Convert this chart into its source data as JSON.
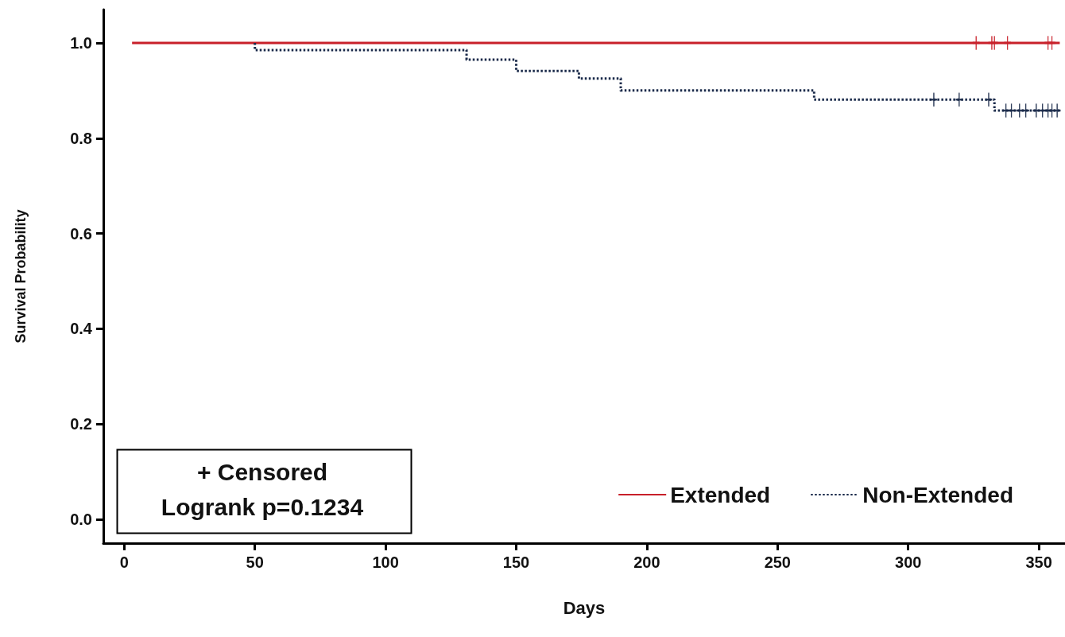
{
  "chart_data": {
    "type": "step",
    "xlabel": "Days",
    "ylabel": "Survival Probability",
    "annotations": [
      "+ Censored",
      "Logrank p=0.1234"
    ],
    "xlim": [
      -8,
      360
    ],
    "xticks": [
      0,
      50,
      100,
      150,
      200,
      250,
      300,
      350
    ],
    "ylim": [
      -0.05,
      1.07
    ],
    "yticks": [
      {
        "value": 0,
        "label": "0.0"
      },
      0.2,
      0.4,
      0.6,
      0.8,
      {
        "value": 1,
        "label": "1.0"
      }
    ],
    "grid": false,
    "legend": "bottom right",
    "marker": "none",
    "series": [
      {
        "name": "Extended",
        "color": "#c8202a",
        "line_style": "solid",
        "x": [
          3,
          358
        ],
        "values": [
          1,
          1
        ]
      },
      {
        "name": "Non-Extended",
        "color": "#1a2a4a",
        "line_style": "dotted",
        "x": [
          50,
          50,
          131,
          150,
          174,
          190,
          264,
          333,
          358
        ],
        "values": [
          1,
          0.985,
          0.965,
          0.941,
          0.925,
          0.9,
          0.881,
          0.858,
          0.858
        ]
      },
      {
        "type": "scatter",
        "marker": "cross",
        "color": "#c8202a",
        "x": [
          326,
          332,
          333,
          338,
          353.5,
          355
        ],
        "values": [
          1,
          1,
          1,
          1,
          1,
          1
        ]
      },
      {
        "type": "scatter",
        "marker": "cross",
        "color": "#1a2a4a",
        "x": [
          309.8,
          319.5,
          330.8,
          337.4,
          339.5,
          342.6,
          345,
          349,
          351.4,
          353.5,
          355,
          357
        ],
        "values": [
          0.881,
          0.881,
          0.881,
          0.858,
          0.858,
          0.858,
          0.858,
          0.858,
          0.858,
          0.858,
          0.858,
          0.858
        ]
      }
    ]
  }
}
